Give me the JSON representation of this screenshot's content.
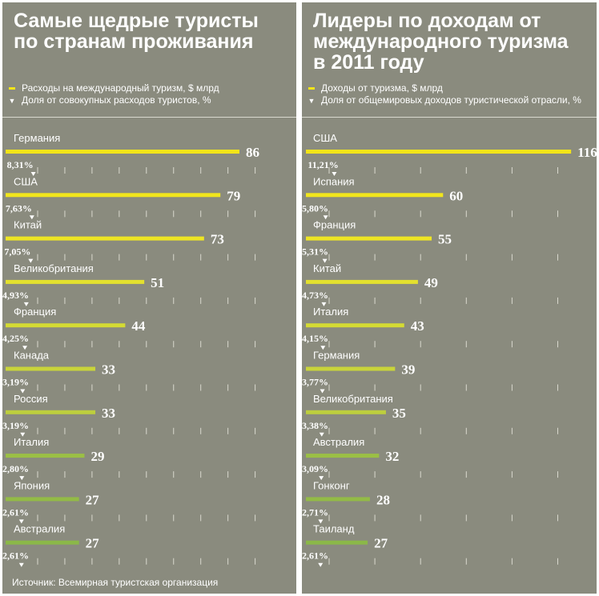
{
  "colors": {
    "panel_bg": "#8a8b7e",
    "bar_palette": [
      "#f2e418",
      "#f1e61c",
      "#eee524",
      "#e3e02e",
      "#d4da33",
      "#c9d43a",
      "#bdce3e",
      "#9bbf45",
      "#93bb46",
      "#8bb848"
    ],
    "value_label": "#ffffff",
    "gridline": "#d9d9cf"
  },
  "left": {
    "title": "Самые щедрые туристы по странам проживания",
    "legend_bar": "Расходы на международный туризм, $ млрд",
    "legend_share": "Доля от совокупных расходов туристов, %",
    "source": "Источник: Всемирная туристская организация"
  },
  "right": {
    "title": "Лидеры по доходам от международного туризма в 2011 году",
    "legend_bar": "Доходы от туризма, $ млрд",
    "legend_share": "Доля от общемировых доходов туристической отрасли, %"
  },
  "chart_data": [
    {
      "type": "bar",
      "orientation": "horizontal",
      "title": "Самые щедрые туристы по странам проживания",
      "categories": [
        "Германия",
        "США",
        "Китай",
        "Великобритания",
        "Франция",
        "Канада",
        "Россия",
        "Италия",
        "Япония",
        "Австралия"
      ],
      "series": [
        {
          "name": "Расходы на международный туризм, $ млрд",
          "values": [
            86,
            79,
            73,
            51,
            44,
            33,
            33,
            29,
            27,
            27
          ]
        },
        {
          "name": "Доля от совокупных расходов туристов, %",
          "values": [
            8.31,
            7.63,
            7.05,
            4.93,
            4.25,
            3.19,
            3.19,
            2.8,
            2.61,
            2.61
          ],
          "labels": [
            "8,31%",
            "7,63%",
            "7,05%",
            "4,93%",
            "4,25%",
            "3,19%",
            "3,19%",
            "2,80%",
            "2,61%",
            "2,61%"
          ]
        }
      ],
      "value_labels": [
        "86",
        "79",
        "73",
        "51",
        "44",
        "33",
        "33",
        "29",
        "27",
        "27"
      ],
      "xlim": [
        0,
        100
      ],
      "share_xlim": [
        0,
        12
      ],
      "grid": true,
      "grid_step": 10,
      "legend": "top-left"
    },
    {
      "type": "bar",
      "orientation": "horizontal",
      "title": "Лидеры по доходам от международного туризма в 2011 году",
      "categories": [
        "США",
        "Испания",
        "Франция",
        "Китай",
        "Италия",
        "Германия",
        "Великобритания",
        "Австралия",
        "Гонконг",
        "Таиланд"
      ],
      "series": [
        {
          "name": "Доходы от туризма, $ млрд",
          "values": [
            116,
            60,
            55,
            49,
            43,
            39,
            35,
            32,
            28,
            27
          ]
        },
        {
          "name": "Доля от общемировых доходов туристической отрасли, %",
          "values": [
            11.21,
            5.8,
            5.31,
            4.73,
            4.15,
            3.77,
            3.38,
            3.09,
            2.71,
            2.61
          ],
          "labels": [
            "11,21%",
            "5,80%",
            "5,31%",
            "4,73%",
            "4,15%",
            "3,77%",
            "3,38%",
            "3,09%",
            "2,71%",
            "2,61%"
          ]
        }
      ],
      "value_labels": [
        "116",
        "60",
        "55",
        "49",
        "43",
        "39",
        "35",
        "32",
        "28",
        "27"
      ],
      "xlim": [
        0,
        140
      ],
      "share_xlim": [
        0,
        14
      ],
      "grid": true,
      "grid_step": 20,
      "legend": "top-left"
    }
  ]
}
